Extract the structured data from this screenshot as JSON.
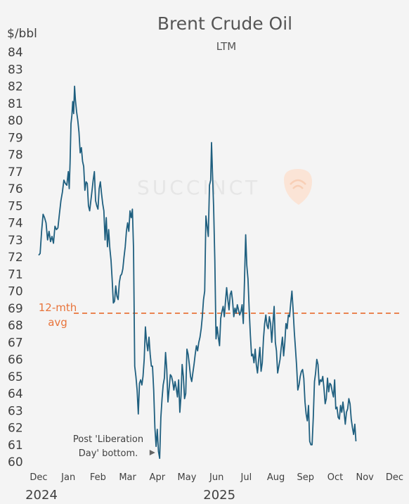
{
  "chart_data": {
    "type": "line",
    "title": "Brent Crude Oil",
    "subtitle": "LTM",
    "ylabel": "$/bbl",
    "ylim": [
      60,
      84
    ],
    "yticks": [
      60,
      61,
      62,
      63,
      64,
      65,
      66,
      67,
      68,
      69,
      70,
      71,
      72,
      73,
      74,
      75,
      76,
      77,
      78,
      79,
      80,
      81,
      82,
      83,
      84
    ],
    "xticks": [
      "Dec",
      "Jan",
      "Feb",
      "Mar",
      "Apr",
      "May",
      "Jun",
      "Jul",
      "Aug",
      "Sep",
      "Oct",
      "Nov",
      "Dec"
    ],
    "year_labels": [
      {
        "label": "2024",
        "at_month": 0
      },
      {
        "label": "2025",
        "at_month": 6
      }
    ],
    "x_unit": "months from start of Dec 2024",
    "series": [
      {
        "color": "#1f5f7f",
        "points": [
          [
            0.0,
            72.1
          ],
          [
            0.05,
            72.2
          ],
          [
            0.1,
            73.5
          ],
          [
            0.15,
            74.5
          ],
          [
            0.2,
            74.3
          ],
          [
            0.25,
            74.0
          ],
          [
            0.3,
            73.0
          ],
          [
            0.35,
            73.5
          ],
          [
            0.4,
            72.9
          ],
          [
            0.45,
            73.2
          ],
          [
            0.5,
            72.8
          ],
          [
            0.55,
            73.8
          ],
          [
            0.6,
            73.6
          ],
          [
            0.65,
            73.7
          ],
          [
            0.7,
            74.5
          ],
          [
            0.75,
            75.3
          ],
          [
            0.8,
            75.8
          ],
          [
            0.85,
            76.5
          ],
          [
            0.9,
            76.3
          ],
          [
            0.95,
            76.2
          ],
          [
            1.0,
            77.0
          ],
          [
            1.03,
            76.0
          ],
          [
            1.06,
            77.5
          ],
          [
            1.09,
            79.8
          ],
          [
            1.12,
            80.3
          ],
          [
            1.15,
            81.1
          ],
          [
            1.18,
            80.4
          ],
          [
            1.21,
            82.0
          ],
          [
            1.24,
            81.2
          ],
          [
            1.28,
            80.5
          ],
          [
            1.32,
            80.0
          ],
          [
            1.36,
            79.3
          ],
          [
            1.4,
            78.1
          ],
          [
            1.44,
            78.4
          ],
          [
            1.48,
            77.6
          ],
          [
            1.52,
            77.3
          ],
          [
            1.56,
            75.9
          ],
          [
            1.6,
            76.4
          ],
          [
            1.64,
            76.3
          ],
          [
            1.68,
            75.0
          ],
          [
            1.72,
            74.7
          ],
          [
            1.76,
            75.3
          ],
          [
            1.8,
            75.9
          ],
          [
            1.84,
            76.5
          ],
          [
            1.88,
            77.0
          ],
          [
            1.92,
            75.3
          ],
          [
            1.96,
            75.0
          ],
          [
            2.0,
            74.8
          ],
          [
            2.04,
            76.0
          ],
          [
            2.08,
            76.4
          ],
          [
            2.12,
            75.7
          ],
          [
            2.16,
            75.1
          ],
          [
            2.2,
            74.7
          ],
          [
            2.24,
            73.0
          ],
          [
            2.28,
            74.3
          ],
          [
            2.32,
            72.6
          ],
          [
            2.36,
            73.6
          ],
          [
            2.4,
            72.5
          ],
          [
            2.44,
            71.8
          ],
          [
            2.48,
            70.6
          ],
          [
            2.52,
            69.3
          ],
          [
            2.56,
            69.4
          ],
          [
            2.6,
            70.3
          ],
          [
            2.64,
            69.7
          ],
          [
            2.68,
            69.5
          ],
          [
            2.72,
            70.5
          ],
          [
            2.76,
            70.9
          ],
          [
            2.8,
            71.0
          ],
          [
            2.84,
            71.3
          ],
          [
            2.88,
            72.0
          ],
          [
            2.92,
            72.6
          ],
          [
            2.96,
            73.5
          ],
          [
            3.0,
            74.0
          ],
          [
            3.04,
            73.5
          ],
          [
            3.08,
            74.7
          ],
          [
            3.12,
            74.3
          ],
          [
            3.16,
            74.8
          ],
          [
            3.2,
            72.5
          ],
          [
            3.24,
            65.6
          ],
          [
            3.28,
            65.0
          ],
          [
            3.32,
            64.2
          ],
          [
            3.36,
            62.8
          ],
          [
            3.4,
            64.6
          ],
          [
            3.44,
            64.8
          ],
          [
            3.48,
            64.5
          ],
          [
            3.52,
            65.0
          ],
          [
            3.56,
            66.0
          ],
          [
            3.6,
            67.9
          ],
          [
            3.64,
            67.0
          ],
          [
            3.68,
            66.5
          ],
          [
            3.72,
            67.3
          ],
          [
            3.76,
            66.3
          ],
          [
            3.8,
            65.6
          ],
          [
            3.84,
            65.6
          ],
          [
            3.88,
            64.2
          ],
          [
            3.92,
            62.0
          ],
          [
            3.96,
            60.9
          ],
          [
            4.0,
            61.9
          ],
          [
            4.04,
            60.6
          ],
          [
            4.08,
            60.2
          ],
          [
            4.12,
            62.6
          ],
          [
            4.16,
            63.7
          ],
          [
            4.2,
            64.5
          ],
          [
            4.24,
            64.9
          ],
          [
            4.28,
            66.4
          ],
          [
            4.32,
            65.4
          ],
          [
            4.36,
            63.5
          ],
          [
            4.4,
            64.3
          ],
          [
            4.44,
            65.1
          ],
          [
            4.48,
            65.0
          ],
          [
            4.52,
            64.7
          ],
          [
            4.56,
            64.2
          ],
          [
            4.6,
            64.7
          ],
          [
            4.64,
            64.3
          ],
          [
            4.68,
            63.8
          ],
          [
            4.72,
            64.8
          ],
          [
            4.76,
            62.9
          ],
          [
            4.8,
            63.9
          ],
          [
            4.84,
            65.7
          ],
          [
            4.88,
            65.0
          ],
          [
            4.92,
            63.7
          ],
          [
            4.96,
            64.0
          ],
          [
            5.0,
            66.6
          ],
          [
            5.04,
            66.3
          ],
          [
            5.08,
            65.7
          ],
          [
            5.12,
            65.0
          ],
          [
            5.16,
            64.7
          ],
          [
            5.2,
            65.2
          ],
          [
            5.24,
            65.7
          ],
          [
            5.28,
            66.3
          ],
          [
            5.32,
            66.8
          ],
          [
            5.36,
            66.5
          ],
          [
            5.4,
            67.0
          ],
          [
            5.44,
            67.3
          ],
          [
            5.48,
            67.8
          ],
          [
            5.52,
            68.5
          ],
          [
            5.56,
            69.5
          ],
          [
            5.6,
            70.0
          ],
          [
            5.64,
            74.4
          ],
          [
            5.68,
            73.8
          ],
          [
            5.72,
            73.2
          ],
          [
            5.76,
            76.2
          ],
          [
            5.8,
            76.5
          ],
          [
            5.83,
            78.7
          ],
          [
            5.86,
            77.0
          ],
          [
            5.9,
            74.9
          ],
          [
            5.94,
            71.8
          ],
          [
            5.98,
            67.2
          ],
          [
            6.02,
            67.9
          ],
          [
            6.06,
            67.3
          ],
          [
            6.1,
            66.8
          ],
          [
            6.14,
            68.4
          ],
          [
            6.18,
            68.8
          ],
          [
            6.22,
            69.1
          ],
          [
            6.26,
            68.5
          ],
          [
            6.3,
            69.4
          ],
          [
            6.34,
            70.2
          ],
          [
            6.38,
            69.5
          ],
          [
            6.42,
            68.9
          ],
          [
            6.46,
            69.8
          ],
          [
            6.5,
            70.0
          ],
          [
            6.54,
            69.4
          ],
          [
            6.58,
            68.5
          ],
          [
            6.62,
            69.0
          ],
          [
            6.66,
            68.7
          ],
          [
            6.7,
            69.2
          ],
          [
            6.74,
            68.9
          ],
          [
            6.78,
            68.6
          ],
          [
            6.82,
            68.8
          ],
          [
            6.86,
            69.2
          ],
          [
            6.9,
            68.1
          ],
          [
            6.94,
            70.6
          ],
          [
            6.98,
            73.3
          ],
          [
            7.02,
            71.5
          ],
          [
            7.06,
            70.7
          ],
          [
            7.1,
            68.9
          ],
          [
            7.14,
            67.4
          ],
          [
            7.18,
            66.2
          ],
          [
            7.22,
            66.3
          ],
          [
            7.26,
            65.8
          ],
          [
            7.3,
            66.6
          ],
          [
            7.34,
            65.7
          ],
          [
            7.38,
            65.2
          ],
          [
            7.42,
            66.0
          ],
          [
            7.46,
            66.7
          ],
          [
            7.5,
            65.3
          ],
          [
            7.54,
            65.8
          ],
          [
            7.58,
            67.2
          ],
          [
            7.62,
            68.1
          ],
          [
            7.66,
            68.6
          ],
          [
            7.7,
            68.0
          ],
          [
            7.74,
            67.8
          ],
          [
            7.78,
            68.5
          ],
          [
            7.82,
            68.1
          ],
          [
            7.86,
            67.0
          ],
          [
            7.9,
            68.1
          ],
          [
            7.94,
            69.1
          ],
          [
            7.98,
            67.0
          ],
          [
            8.02,
            66.5
          ],
          [
            8.06,
            65.2
          ],
          [
            8.1,
            65.6
          ],
          [
            8.14,
            66.0
          ],
          [
            8.18,
            66.7
          ],
          [
            8.22,
            67.3
          ],
          [
            8.26,
            66.2
          ],
          [
            8.3,
            67.0
          ],
          [
            8.34,
            68.1
          ],
          [
            8.38,
            67.8
          ],
          [
            8.42,
            68.6
          ],
          [
            8.46,
            68.5
          ],
          [
            8.5,
            69.3
          ],
          [
            8.54,
            70.0
          ],
          [
            8.58,
            68.9
          ],
          [
            8.62,
            67.6
          ],
          [
            8.66,
            66.6
          ],
          [
            8.7,
            65.6
          ],
          [
            8.74,
            64.2
          ],
          [
            8.78,
            64.5
          ],
          [
            8.82,
            65.0
          ],
          [
            8.86,
            65.3
          ],
          [
            8.9,
            65.4
          ],
          [
            8.94,
            64.9
          ],
          [
            8.98,
            63.5
          ],
          [
            9.02,
            62.8
          ],
          [
            9.06,
            62.4
          ],
          [
            9.1,
            63.3
          ],
          [
            9.14,
            61.2
          ],
          [
            9.18,
            61.0
          ],
          [
            9.22,
            61.0
          ],
          [
            9.26,
            62.6
          ],
          [
            9.3,
            64.7
          ],
          [
            9.34,
            65.2
          ],
          [
            9.38,
            66.0
          ],
          [
            9.42,
            65.7
          ],
          [
            9.46,
            64.5
          ],
          [
            9.5,
            64.8
          ],
          [
            9.54,
            64.7
          ],
          [
            9.58,
            65.0
          ],
          [
            9.62,
            64.3
          ],
          [
            9.66,
            63.4
          ],
          [
            9.7,
            63.7
          ],
          [
            9.74,
            64.9
          ],
          [
            9.78,
            64.1
          ],
          [
            9.82,
            64.6
          ],
          [
            9.86,
            64.5
          ],
          [
            9.9,
            64.1
          ],
          [
            9.94,
            63.8
          ],
          [
            9.98,
            64.8
          ],
          [
            10.02,
            63.1
          ],
          [
            10.06,
            63.2
          ],
          [
            10.1,
            62.6
          ],
          [
            10.14,
            62.5
          ],
          [
            10.18,
            63.3
          ],
          [
            10.22,
            62.9
          ],
          [
            10.26,
            63.5
          ],
          [
            10.3,
            62.9
          ],
          [
            10.34,
            62.2
          ],
          [
            10.38,
            62.9
          ],
          [
            10.42,
            63.1
          ],
          [
            10.46,
            63.7
          ],
          [
            10.5,
            63.4
          ],
          [
            10.54,
            62.5
          ],
          [
            10.58,
            62.0
          ],
          [
            10.62,
            61.6
          ],
          [
            10.66,
            62.2
          ],
          [
            10.7,
            61.2
          ]
        ]
      }
    ],
    "reference_line": {
      "value": 68.7,
      "label_line1": "12-mth",
      "label_line2": "avg",
      "color": "#e8743b"
    },
    "annotation": {
      "line1": "Post 'Liberation",
      "line2": "Day' bottom.",
      "x": 4.0,
      "y": 60.7
    },
    "watermark": "SUCCINCT",
    "grid": false,
    "legend": "none"
  }
}
